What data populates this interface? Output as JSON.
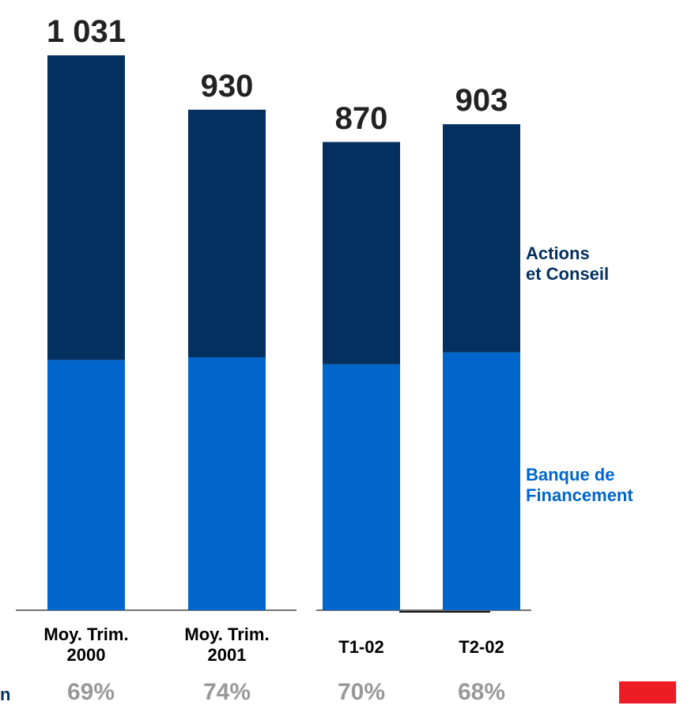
{
  "chart_data": {
    "type": "stacked_bar",
    "categories": [
      "Moy. Trim.\n2000",
      "Moy. Trim.\n2001",
      "T1-02",
      "T2-02"
    ],
    "series": [
      {
        "name": "Banque de\nFinancement",
        "color": "#0066cc",
        "values": [
          465,
          470,
          457,
          479
        ]
      },
      {
        "name": "Actions\net Conseil",
        "color": "#04305f",
        "values": [
          566,
          460,
          413,
          424
        ]
      }
    ],
    "totals": [
      "1 031",
      "930",
      "870",
      "903"
    ],
    "row_label": "n",
    "row_values": [
      "69%",
      "74%",
      "70%",
      "68%"
    ]
  }
}
